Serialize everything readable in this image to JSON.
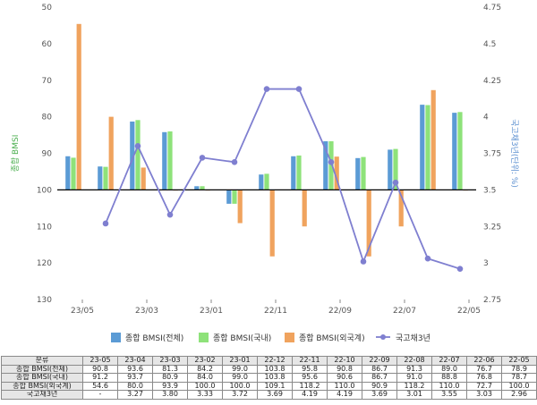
{
  "chart_data": {
    "type": "bar",
    "categories": [
      "23-05",
      "23-04",
      "23-03",
      "23-02",
      "23-01",
      "22-12",
      "22-11",
      "22-10",
      "22-09",
      "22-08",
      "22-07",
      "22-06",
      "22-05"
    ],
    "x_tick_labels": [
      "23/05",
      "23/03",
      "23/01",
      "22/11",
      "22/09",
      "22/07",
      "22/05"
    ],
    "series": [
      {
        "name": "종합 BMSI(전체)",
        "type": "bar",
        "axis": "left",
        "color": "#5b9bd5",
        "values": [
          90.8,
          93.6,
          81.3,
          84.2,
          99.0,
          103.8,
          95.8,
          90.8,
          86.7,
          91.3,
          89.0,
          76.7,
          78.9
        ]
      },
      {
        "name": "종합 BMSI(국내)",
        "type": "bar",
        "axis": "left",
        "color": "#8ee27a",
        "values": [
          91.2,
          93.7,
          80.9,
          84.0,
          99.0,
          103.8,
          95.6,
          90.6,
          86.7,
          91.0,
          88.8,
          76.8,
          78.7
        ]
      },
      {
        "name": "종합 BMSI(외국계)",
        "type": "bar",
        "axis": "left",
        "color": "#f0a35e",
        "values": [
          54.6,
          80.0,
          93.9,
          100.0,
          100.0,
          109.1,
          118.2,
          110.0,
          90.9,
          118.2,
          110.0,
          72.7,
          100.0
        ]
      },
      {
        "name": "국고채3년",
        "type": "line",
        "axis": "right",
        "color": "#7f7fd0",
        "values": [
          null,
          3.27,
          3.8,
          3.33,
          3.72,
          3.69,
          4.19,
          4.19,
          3.69,
          3.01,
          3.55,
          3.03,
          2.96
        ]
      }
    ],
    "ylabel": "종합 BMSI",
    "y2label": "국고채3년(단위: %)",
    "ylim": [
      130,
      50
    ],
    "y_inverted": true,
    "y_ticks": [
      50,
      60,
      70,
      80,
      90,
      100,
      110,
      120,
      130
    ],
    "y2lim": [
      2.75,
      4.75
    ],
    "y2_ticks": [
      "2.75",
      "3",
      "3.25",
      "3.5",
      "3.75",
      "4",
      "4.25",
      "4.5",
      "4.75"
    ],
    "baseline": 100,
    "legend_position": "bottom"
  },
  "table": {
    "header_label": "분류",
    "columns": [
      "23-05",
      "23-04",
      "23-03",
      "23-02",
      "23-01",
      "22-12",
      "22-11",
      "22-10",
      "22-09",
      "22-08",
      "22-07",
      "22-06",
      "22-05"
    ],
    "rows": [
      {
        "label": "종합 BMSI(전체)",
        "values": [
          "90.8",
          "93.6",
          "81.3",
          "84.2",
          "99.0",
          "103.8",
          "95.8",
          "90.8",
          "86.7",
          "91.3",
          "89.0",
          "76.7",
          "78.9"
        ]
      },
      {
        "label": "종합 BMSI(국내)",
        "values": [
          "91.2",
          "93.7",
          "80.9",
          "84.0",
          "99.0",
          "103.8",
          "95.6",
          "90.6",
          "86.7",
          "91.0",
          "88.8",
          "76.8",
          "78.7"
        ]
      },
      {
        "label": "종합 BMSI(외국계)",
        "values": [
          "54.6",
          "80.0",
          "93.9",
          "100.0",
          "100.0",
          "109.1",
          "118.2",
          "110.0",
          "90.9",
          "118.2",
          "110.0",
          "72.7",
          "100.0"
        ]
      },
      {
        "label": "국고채3년",
        "values": [
          "-",
          "3.27",
          "3.80",
          "3.33",
          "3.72",
          "3.69",
          "4.19",
          "4.19",
          "3.69",
          "3.01",
          "3.55",
          "3.03",
          "2.96"
        ]
      }
    ]
  }
}
